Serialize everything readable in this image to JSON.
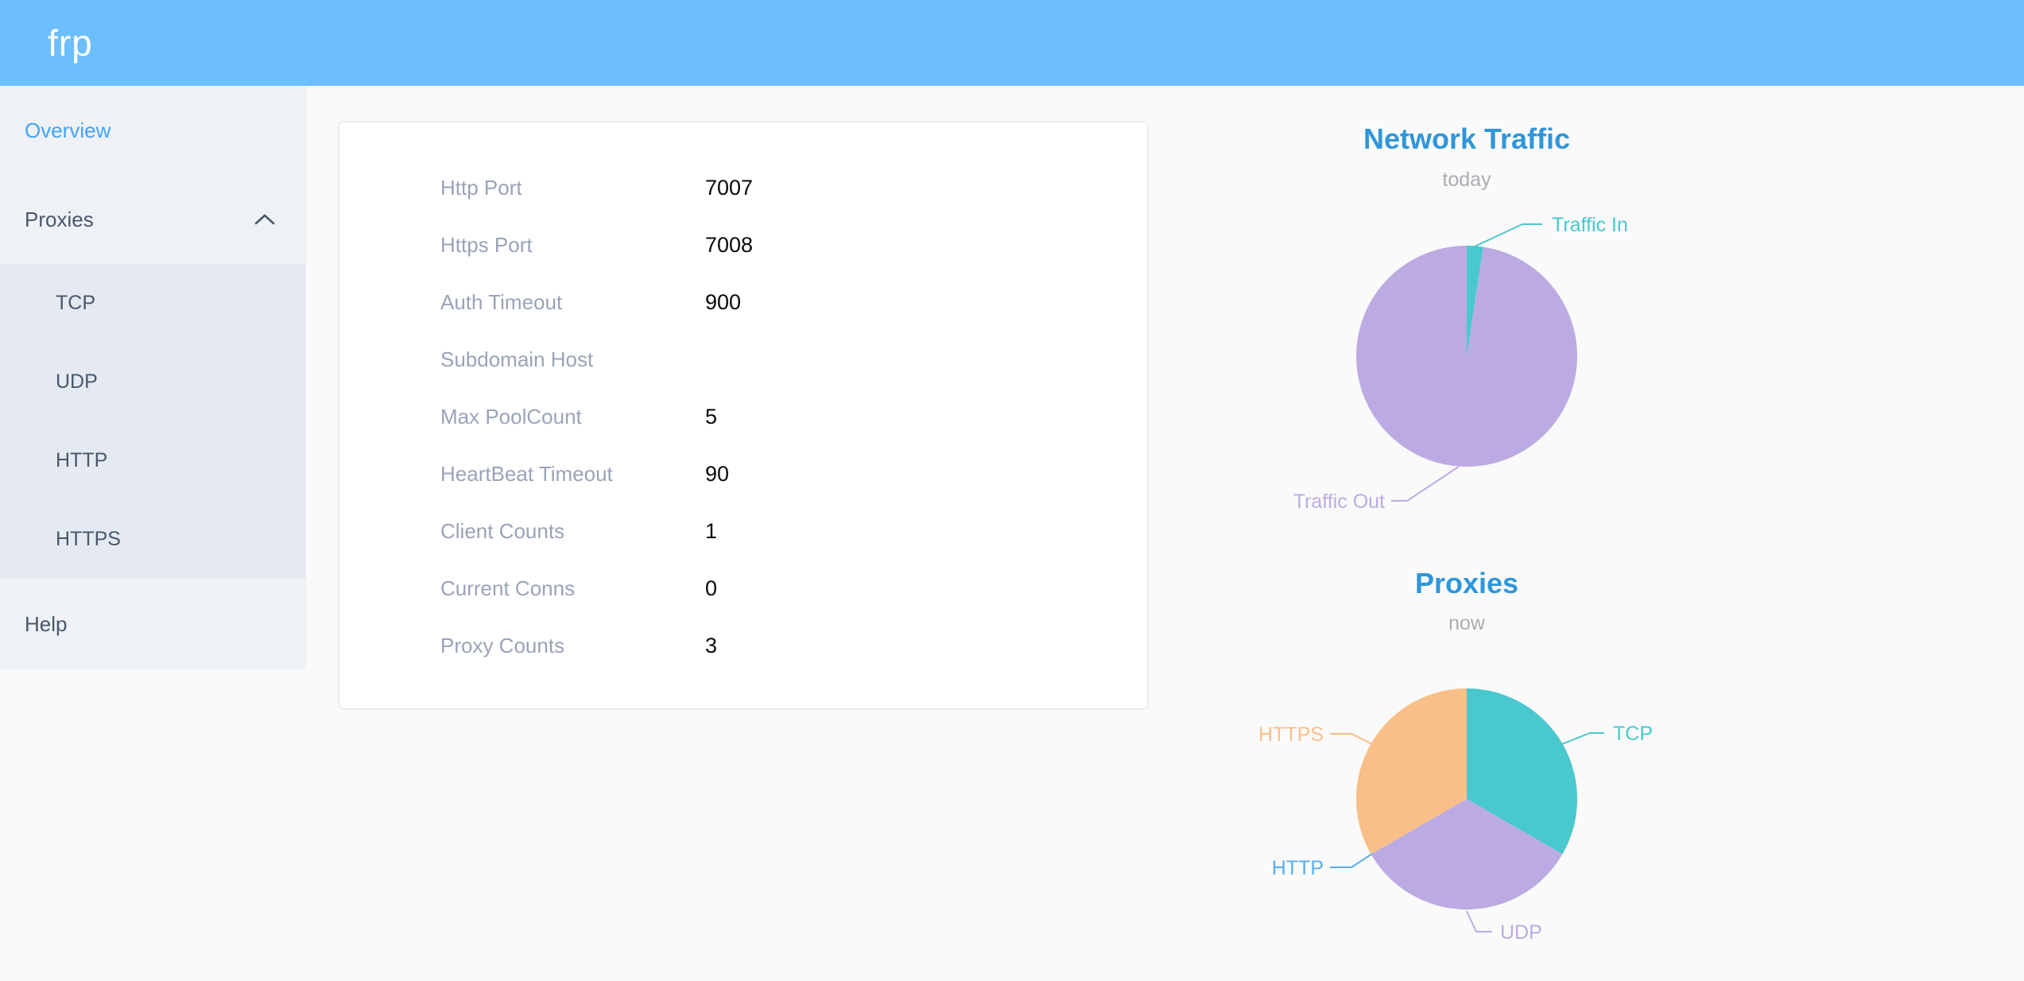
{
  "header": {
    "logo": "frp",
    "bg_color": "#6dbefc"
  },
  "sidebar": {
    "overview_label": "Overview",
    "proxies_label": "Proxies",
    "proxies_expanded": true,
    "proxies_children": [
      "TCP",
      "UDP",
      "HTTP",
      "HTTPS"
    ],
    "help_label": "Help",
    "active_item": "Overview",
    "active_color": "#43a3f7",
    "text_color": "#48576a"
  },
  "main_card": {
    "rows": [
      {
        "label": "Http Port",
        "value": "7007"
      },
      {
        "label": "Https Port",
        "value": "7008"
      },
      {
        "label": "Auth Timeout",
        "value": "900"
      },
      {
        "label": "Subdomain Host",
        "value": ""
      },
      {
        "label": "Max PoolCount",
        "value": "5"
      },
      {
        "label": "HeartBeat Timeout",
        "value": "90"
      },
      {
        "label": "Client Counts",
        "value": "1"
      },
      {
        "label": "Current Conns",
        "value": "0"
      },
      {
        "label": "Proxy Counts",
        "value": "3"
      }
    ]
  },
  "chart_data": [
    {
      "type": "pie",
      "title": "Network Traffic",
      "subtitle": "today",
      "legend_position": "callout-labels",
      "unit": "% (estimated from arc angles)",
      "slices": [
        {
          "name": "Traffic In",
          "value": 2.4,
          "color": "#49c8cd"
        },
        {
          "name": "Traffic Out",
          "value": 97.6,
          "color": "#bcabe3"
        }
      ]
    },
    {
      "type": "pie",
      "title": "Proxies",
      "subtitle": "now",
      "legend_position": "callout-labels",
      "unit": "proxy count",
      "slices": [
        {
          "name": "TCP",
          "value": 1,
          "color": "#49c8cd"
        },
        {
          "name": "UDP",
          "value": 1,
          "color": "#bcabe3"
        },
        {
          "name": "HTTP",
          "value": 0,
          "color": "#58aeee"
        },
        {
          "name": "HTTPS",
          "value": 1,
          "color": "#f9bf88"
        }
      ]
    }
  ],
  "colors": {
    "chart_title_blue": "#2f96da",
    "subtitle_gray": "#a9acb1",
    "card_label_gray": "#9aa3b8"
  }
}
